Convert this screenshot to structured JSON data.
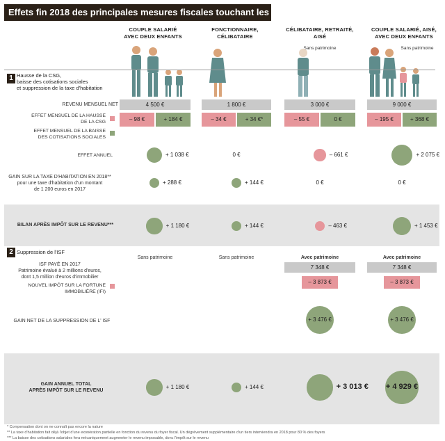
{
  "title": "Effets fin 2018 des principales mesures fiscales touchant les ménages",
  "columns": [
    {
      "head1": "COUPLE SALARIÉ",
      "head2": "AVEC DEUX ENFANTS",
      "head3": "",
      "note": ""
    },
    {
      "head1": "FONCTIONNAIRE,",
      "head2": "CÉLIBATAIRE",
      "head3": "",
      "note": ""
    },
    {
      "head1": "CÉLIBATAIRE, RETRAITÉ,",
      "head2": "AISÉ",
      "head3": "",
      "note": "Sans patrimoine"
    },
    {
      "head1": "COUPLE SALARIÉ, AISÉ,",
      "head2": "AVEC DEUX ENFANTS",
      "head3": "",
      "note": "Sans patrimoine"
    }
  ],
  "section1": {
    "num": "1",
    "title_l1": "Hausse de la CSG,",
    "title_l2": "baisse des cotisations sociales",
    "title_l3": "et suppression de la taxe d'habitation"
  },
  "labels": {
    "revenu": "REVENU MENSUEL NET",
    "hausse_l1": "EFFET MENSUEL DE LA HAUSSE",
    "hausse_l2": "DE LA CSG",
    "baisse_l1": "EFFET MENSUEL DE LA BAISSE",
    "baisse_l2": "DES COTISATIONS SOCIALES",
    "annuel": "EFFET ANNUEL",
    "taxe_l1": "GAIN SUR LA TAXE D'HABITATION EN 2018**",
    "taxe_l2": "pour une taxe d'habitation d'un montant",
    "taxe_l3": "de 1 200 euros en 2017",
    "bilan": "BILAN APRÈS IMPÔT SUR LE REVENU***",
    "isf_l1": "ISF PAYÉ EN 2017",
    "isf_l2": "Patrimoine évalué à 2 millions d'euros,",
    "isf_l3": "dont 1,5 million d'euros d'immobilier",
    "ifi_l1": "NOUVEL IMPÔT SUR LA FORTUNE",
    "ifi_l2": "IMMOBILIÈRE (IFI)",
    "gainisf": "GAIN NET DE LA SUPPRESSION DE L' ISF",
    "total_l1": "GAIN ANNUEL TOTAL",
    "total_l2": "APRÈS IMPÔT SUR LE REVENU"
  },
  "section2": {
    "num": "2",
    "title": "Suppression de l'ISF"
  },
  "patrimoine": [
    "Sans patrimoine",
    "Sans patrimoine",
    "Avec patrimoine",
    "Avec patrimoine"
  ],
  "footnotes": {
    "f1": "* Compensation dont on ne connaît pas encore la nature",
    "f2": "** La taxe d'habitation fait déjà l'objet d'une exonération partielle en fonction du revenu du foyer fiscal. Un dégrèvement supplémentaire d'un tiers interviendra en 2018 pour 80 % des foyers",
    "f3": "*** La baisse des cotisations salariales fera mécaniquement augmenter le revenu imposable, donc l'impôt sur le revenu"
  },
  "colors": {
    "positive": "#8ea57a",
    "negative": "#e6969b",
    "header": "#2b2118",
    "grey": "#c9c9c9",
    "band": "#e4e4e4"
  },
  "chart_data": {
    "type": "table",
    "categories": [
      "Couple salarié avec deux enfants",
      "Fonctionnaire, célibataire",
      "Célibataire, retraité, aisé",
      "Couple salarié, aisé, avec deux enfants"
    ],
    "revenu_mensuel_net": [
      "4 500 €",
      "1 800 €",
      "3 000 €",
      "9 000 €"
    ],
    "effet_mensuel_csg": [
      "– 98 €",
      "– 34 €",
      "– 55 €",
      "– 195 €"
    ],
    "effet_mensuel_cotisations": [
      "+ 184 €",
      "+ 34 €*",
      "0 €",
      "+ 368 €"
    ],
    "effet_annuel": [
      "+ 1 038 €",
      "0 €",
      "– 661 €",
      "+ 2 075 €"
    ],
    "effet_annuel_values": [
      1038,
      0,
      -661,
      2075
    ],
    "gain_taxe_habitation": [
      "+ 288 €",
      "+ 144 €",
      "0 €",
      "0 €"
    ],
    "gain_taxe_habitation_values": [
      288,
      144,
      0,
      0
    ],
    "bilan_apres_ir": [
      "+ 1 180 €",
      "+ 144 €",
      "– 463 €",
      "+ 1 453 €"
    ],
    "bilan_apres_ir_values": [
      1180,
      144,
      -463,
      1453
    ],
    "isf_paye_2017": [
      "",
      "",
      "7 348 €",
      "7 348 €"
    ],
    "ifi": [
      "",
      "",
      "– 3 873 €",
      "– 3 873 €"
    ],
    "gain_net_isf": [
      "",
      "",
      "+ 3 476 €",
      "+ 3 476 €"
    ],
    "gain_net_isf_values": [
      0,
      0,
      3476,
      3476
    ],
    "gain_annuel_total": [
      "+ 1 180 €",
      "+ 144 €",
      "+ 3 013 €",
      "+ 4 929 €"
    ],
    "gain_annuel_total_values": [
      1180,
      144,
      3013,
      4929
    ]
  }
}
